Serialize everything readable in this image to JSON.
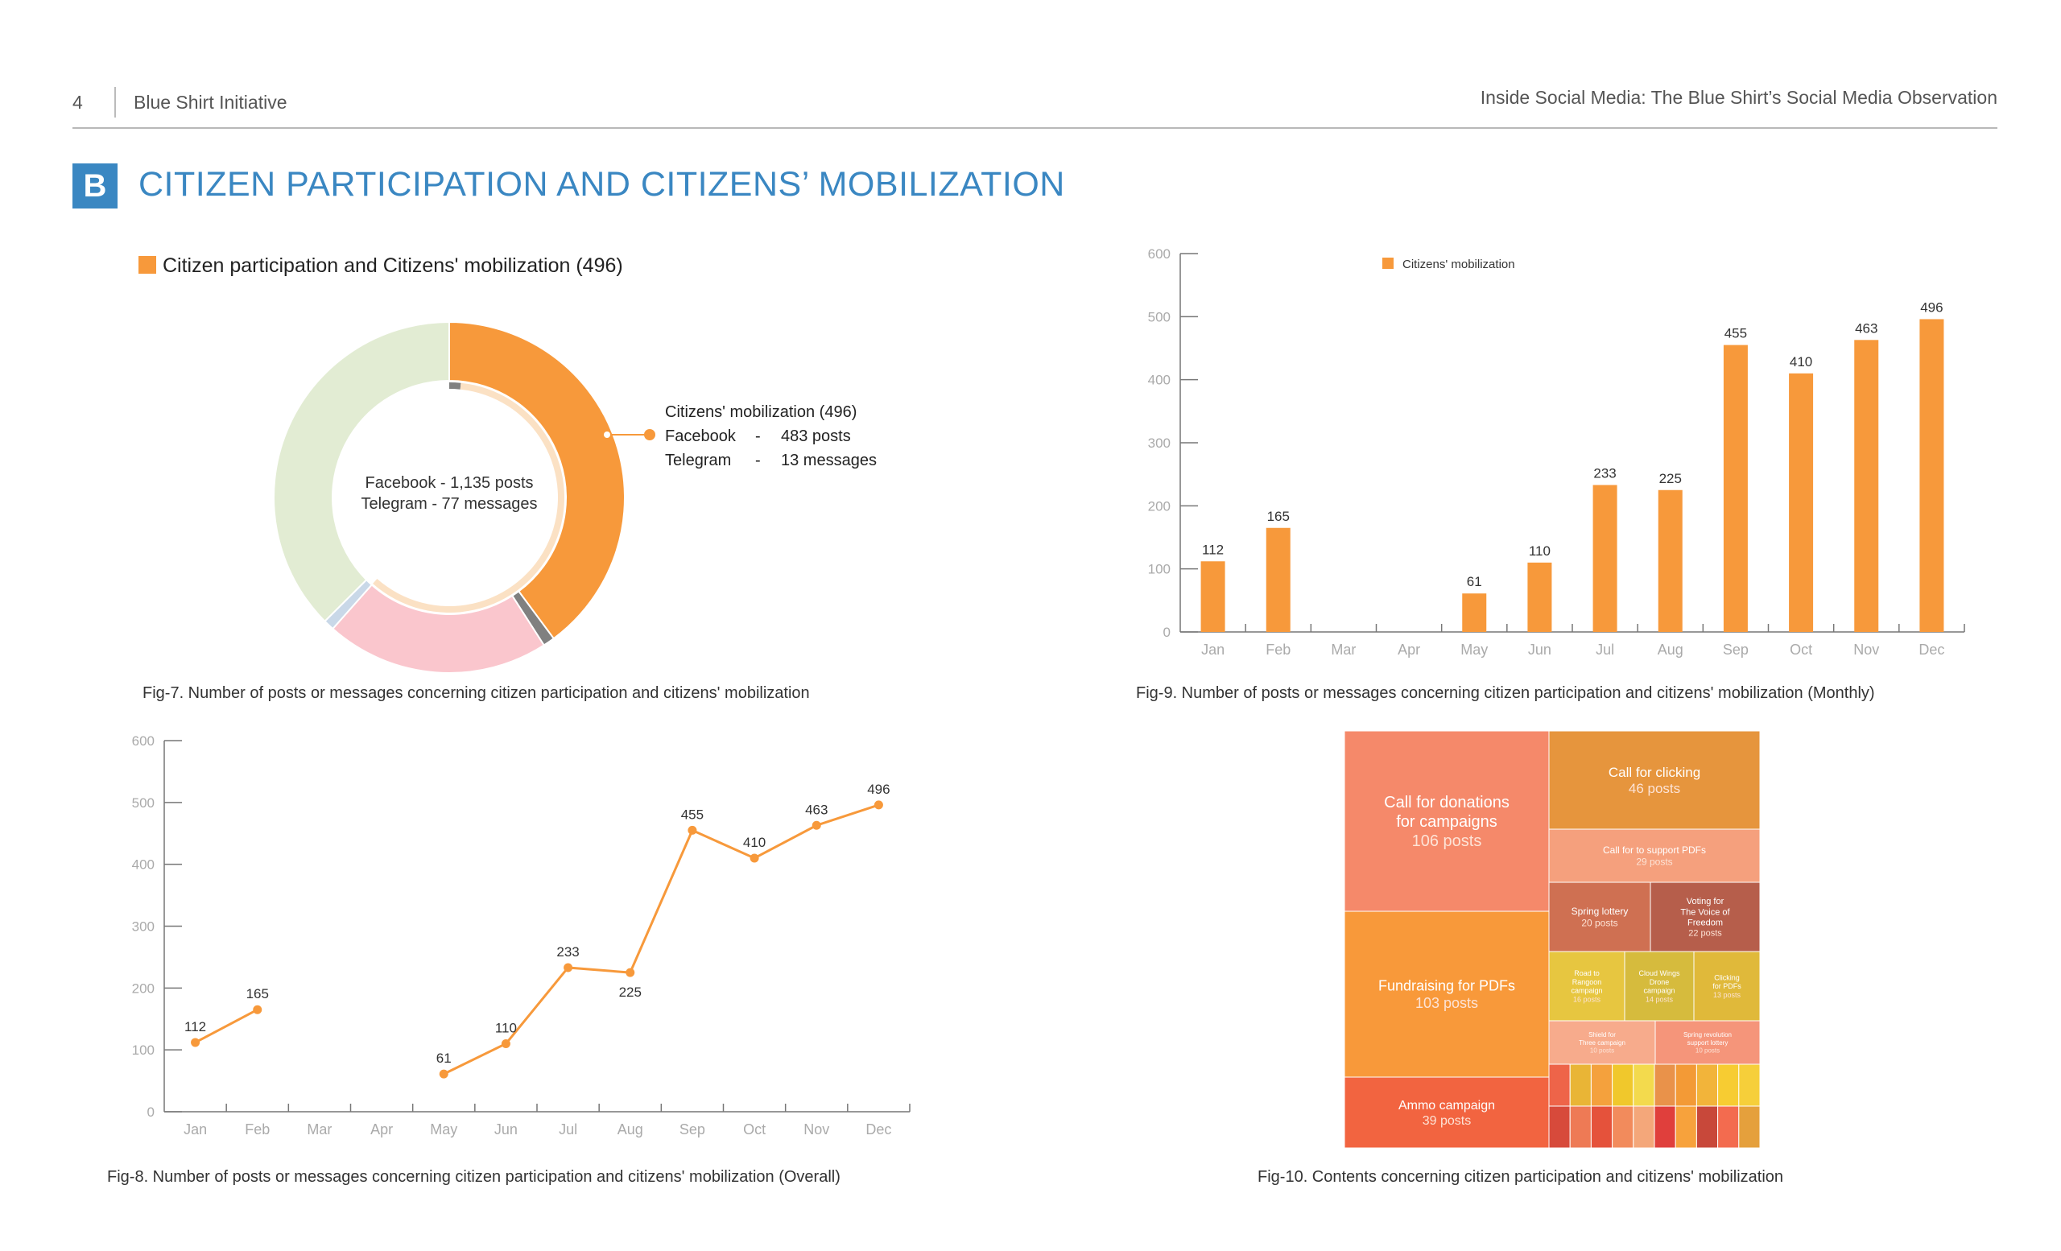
{
  "header": {
    "page_number": "4",
    "publisher": "Blue Shirt Initiative",
    "report_title": "Inside Social Media: The Blue Shirt’s Social Media Observation"
  },
  "section": {
    "badge": "B",
    "title": "CITIZEN PARTICIPATION AND CITIZENS’ MOBILIZATION"
  },
  "colors": {
    "accent": "#3a87c2",
    "orange": "#f7993b",
    "grey": "#808080",
    "light_green": "#e2ecd3",
    "pink": "#fac6cd"
  },
  "fig7": {
    "caption": "Fig-7. Number of posts or messages concerning citizen participation and citizens' mobilization",
    "chart_data": {
      "type": "pie",
      "legend": "Citizen participation and Citizens' mobilization (496)",
      "center_line1": "Facebook - 1,135 posts",
      "center_line2": "Telegram - 77 messages",
      "callout_title": "Citizens' mobilization (496)",
      "callout_lines": [
        {
          "platform": "Facebook",
          "dash": "-",
          "value": "483 posts"
        },
        {
          "platform": "Telegram",
          "dash": "-",
          "value": "13 messages"
        }
      ],
      "outer_ring": [
        {
          "value": 483,
          "color": "#f7993b"
        },
        {
          "value": 13,
          "color": "#808080"
        },
        {
          "value": 250,
          "color": "#fac6cd"
        },
        {
          "value": 12,
          "color": "#c9d8e8"
        },
        {
          "value": 454,
          "color": "#e2ecd3"
        }
      ],
      "inner_ring": [
        {
          "value": 13,
          "color": "#808080"
        },
        {
          "value": 483,
          "color": "#fbe1c4"
        }
      ]
    }
  },
  "fig9": {
    "caption": "Fig-9. Number of posts or messages concerning citizen participation and citizens' mobilization  (Monthly)",
    "chart_data": {
      "type": "bar",
      "series_name": "Citizens' mobilization",
      "categories": [
        "Jan",
        "Feb",
        "Mar",
        "Apr",
        "May",
        "Jun",
        "Jul",
        "Aug",
        "Sep",
        "Oct",
        "Nov",
        "Dec"
      ],
      "values": [
        112,
        165,
        null,
        null,
        61,
        110,
        233,
        225,
        455,
        410,
        463,
        496
      ],
      "labels": [
        "112",
        "165",
        "",
        "",
        "61",
        "110",
        "233",
        "225",
        "455",
        "410",
        "463",
        "496"
      ],
      "ylim": [
        0,
        600
      ],
      "yticks": [
        "0",
        "100",
        "200",
        "300",
        "400",
        "500",
        "600"
      ]
    }
  },
  "fig8": {
    "caption": "Fig-8. Number of posts or messages concerning citizen participation and citizens' mobilization (Overall)",
    "chart_data": {
      "type": "line",
      "categories": [
        "Jan",
        "Feb",
        "Mar",
        "Apr",
        "May",
        "Jun",
        "Jul",
        "Aug",
        "Sep",
        "Oct",
        "Nov",
        "Dec"
      ],
      "values": [
        112,
        165,
        null,
        null,
        61,
        110,
        233,
        225,
        455,
        410,
        463,
        496
      ],
      "labels": [
        "112",
        "165",
        "",
        "",
        "61",
        "110",
        "233",
        "225",
        "455",
        "410",
        "463",
        "496"
      ],
      "label_below": [
        false,
        false,
        false,
        false,
        false,
        false,
        false,
        true,
        false,
        false,
        false,
        false
      ],
      "ylim": [
        0,
        600
      ],
      "yticks": [
        "0",
        "100",
        "200",
        "300",
        "400",
        "500",
        "600"
      ]
    }
  },
  "fig10": {
    "caption": "Fig-10. Contents concerning citizen participation and citizens' mobilization",
    "chart_data": {
      "type": "treemap",
      "items": [
        {
          "title": [
            "Call for donations",
            "for campaigns"
          ],
          "value": "106 posts",
          "color": "#f5896a"
        },
        {
          "title": [
            "Fundraising for PDFs"
          ],
          "value": "103 posts",
          "color": "#f8993a"
        },
        {
          "title": [
            "Ammo campaign"
          ],
          "value": "39 posts",
          "color": "#f26440"
        },
        {
          "title": [
            "Call for clicking"
          ],
          "value": "46 posts",
          "color": "#e6953d"
        },
        {
          "title": [
            "Call for to support PDFs"
          ],
          "value": "29 posts",
          "color": "#f5a07d"
        },
        {
          "title": [
            "Spring lottery"
          ],
          "value": "20 posts",
          "color": "#cf7052"
        },
        {
          "title": [
            "Voting for",
            "The Voice of",
            "Freedom"
          ],
          "value": "22 posts",
          "color": "#b65e4b"
        },
        {
          "title": [
            "Road to",
            "Rangoon",
            "campaign"
          ],
          "value": "16 posts",
          "color": "#e7c640"
        },
        {
          "title": [
            "Cloud Wings",
            "Drone",
            "campaign"
          ],
          "value": "14 posts",
          "color": "#d6bb3d"
        },
        {
          "title": [
            "Clicking",
            "for PDFs"
          ],
          "value": "13 posts",
          "color": "#e0b93a"
        },
        {
          "title": [
            "Shield for",
            "Three campaign"
          ],
          "value": "10 posts",
          "color": "#f7ab8c"
        },
        {
          "title": [
            "Spring revolution",
            "support lottery"
          ],
          "value": "10 posts",
          "color": "#f5957a"
        }
      ],
      "small_tiles": [
        "#ee6449",
        "#e9b536",
        "#f4a13d",
        "#f0c82c",
        "#f3da4d",
        "#e9924a",
        "#f39a36",
        "#f2b43a",
        "#f7cc32",
        "#f6cf3a",
        "#d74a3b",
        "#ee7a55",
        "#e5523b",
        "#f28b5c",
        "#f4a77a",
        "#e03f3c",
        "#f7a23c",
        "#c8483a",
        "#f36b4f",
        "#e5a03c"
      ]
    }
  }
}
